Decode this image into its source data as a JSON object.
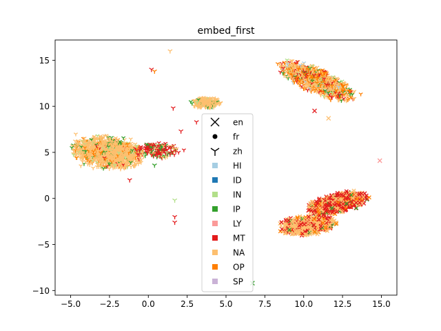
{
  "chart_data": {
    "type": "scatter",
    "title": "embed_first",
    "xlabel": "",
    "ylabel": "",
    "xlim": [
      -6.0,
      16.0
    ],
    "ylim": [
      -10.5,
      17.2
    ],
    "xticks": [
      {
        "v": -5.0,
        "label": "−5.0"
      },
      {
        "v": -2.5,
        "label": "−2.5"
      },
      {
        "v": 0.0,
        "label": "0.0"
      },
      {
        "v": 2.5,
        "label": "2.5"
      },
      {
        "v": 5.0,
        "label": "5.0"
      },
      {
        "v": 7.5,
        "label": "7.5"
      },
      {
        "v": 10.0,
        "label": "10.0"
      },
      {
        "v": 12.5,
        "label": "12.5"
      },
      {
        "v": 15.0,
        "label": "15.0"
      }
    ],
    "yticks": [
      {
        "v": 15,
        "label": "15"
      },
      {
        "v": 10,
        "label": "10"
      },
      {
        "v": 5,
        "label": "5"
      },
      {
        "v": 0,
        "label": "0"
      },
      {
        "v": -5,
        "label": "−5"
      },
      {
        "v": -10,
        "label": "−10"
      }
    ],
    "grid": false,
    "legend_position": "center",
    "marker_legend": [
      {
        "label": "en",
        "marker": "x"
      },
      {
        "label": "fr",
        "marker": "o"
      },
      {
        "label": "zh",
        "marker": "tri"
      }
    ],
    "color_legend": [
      {
        "label": "HI",
        "color": "#a6cee3"
      },
      {
        "label": "ID",
        "color": "#1f78b4"
      },
      {
        "label": "IN",
        "color": "#b2df8a"
      },
      {
        "label": "IP",
        "color": "#33a02c"
      },
      {
        "label": "LY",
        "color": "#fb9a99"
      },
      {
        "label": "MT",
        "color": "#e31a1c"
      },
      {
        "label": "NA",
        "color": "#fdbf6f"
      },
      {
        "label": "OP",
        "color": "#ff7f00"
      },
      {
        "label": "SP",
        "color": "#cab2d6"
      }
    ],
    "clusters": [
      {
        "marker": "tri",
        "cx": -2.6,
        "cy": 5.0,
        "rx": 2.3,
        "ry": 1.6,
        "angle": -22,
        "n": 1300,
        "mix": {
          "NA": 0.78,
          "OP": 0.1,
          "IP": 0.06,
          "IN": 0.04,
          "MT": 0.02
        }
      },
      {
        "marker": "tri",
        "cx": 0.6,
        "cy": 5.2,
        "rx": 1.5,
        "ry": 0.8,
        "angle": 0,
        "n": 180,
        "mix": {
          "MT": 0.55,
          "IP": 0.2,
          "NA": 0.15,
          "IN": 0.1
        }
      },
      {
        "marker": "tri",
        "cx": 3.7,
        "cy": 10.4,
        "rx": 0.9,
        "ry": 0.55,
        "angle": 0,
        "n": 250,
        "mix": {
          "NA": 0.85,
          "IP": 0.1,
          "IN": 0.05
        }
      },
      {
        "marker": "tri",
        "cx": 10.8,
        "cy": 12.8,
        "rx": 2.9,
        "ry": 1.1,
        "angle": -40,
        "n": 900,
        "mix": {
          "NA": 0.45,
          "OP": 0.25,
          "MT": 0.12,
          "IP": 0.1,
          "IN": 0.05,
          "HI": 0.03
        }
      },
      {
        "marker": "x",
        "cx": 10.2,
        "cy": -2.9,
        "rx": 1.8,
        "ry": 1.0,
        "angle": 10,
        "n": 600,
        "mix": {
          "NA": 0.55,
          "MT": 0.3,
          "OP": 0.1,
          "IP": 0.05
        }
      },
      {
        "marker": "x",
        "cx": 12.2,
        "cy": -0.5,
        "rx": 2.0,
        "ry": 1.0,
        "angle": 25,
        "n": 700,
        "mix": {
          "MT": 0.45,
          "NA": 0.4,
          "OP": 0.1,
          "IP": 0.05
        }
      }
    ],
    "outliers": [
      {
        "x": 14.9,
        "y": 4.1,
        "cls": "LY",
        "marker": "x"
      },
      {
        "x": 6.7,
        "y": -9.2,
        "cls": "IP",
        "marker": "x"
      },
      {
        "x": 10.7,
        "y": 9.5,
        "cls": "MT",
        "marker": "x"
      },
      {
        "x": 11.6,
        "y": 8.7,
        "cls": "NA",
        "marker": "x"
      },
      {
        "x": 1.4,
        "y": 16.0,
        "cls": "NA",
        "marker": "tri"
      },
      {
        "x": 0.2,
        "y": 14.0,
        "cls": "MT",
        "marker": "tri"
      },
      {
        "x": 0.4,
        "y": 13.8,
        "cls": "OP",
        "marker": "tri"
      },
      {
        "x": 1.6,
        "y": 9.8,
        "cls": "MT",
        "marker": "tri"
      },
      {
        "x": 2.1,
        "y": 7.3,
        "cls": "MT",
        "marker": "tri"
      },
      {
        "x": 3.1,
        "y": 8.3,
        "cls": "MT",
        "marker": "tri"
      },
      {
        "x": 1.7,
        "y": -0.2,
        "cls": "IN",
        "marker": "tri"
      },
      {
        "x": 1.7,
        "y": -2.0,
        "cls": "MT",
        "marker": "tri"
      },
      {
        "x": 1.7,
        "y": -2.6,
        "cls": "MT",
        "marker": "tri"
      },
      {
        "x": -1.2,
        "y": 2.0,
        "cls": "MT",
        "marker": "tri"
      },
      {
        "x": 0.4,
        "y": 3.6,
        "cls": "IP",
        "marker": "tri"
      }
    ]
  }
}
